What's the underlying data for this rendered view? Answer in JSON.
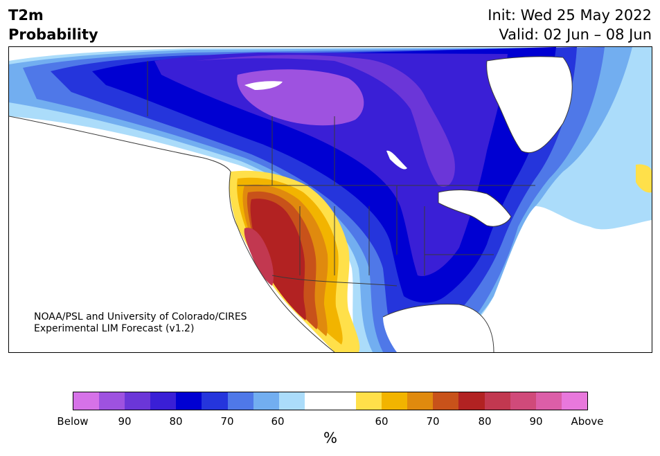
{
  "title": {
    "line1": "T2m",
    "line2": "Probability"
  },
  "dates": {
    "init": "Init: Wed 25 May 2022",
    "valid": "Valid: 02 Jun – 08 Jun"
  },
  "credit": {
    "line1": "NOAA/PSL and University of Colorado/CIRES",
    "line2": "Experimental LIM Forecast (v1.2)"
  },
  "colorbar": {
    "colors": [
      "#d672e8",
      "#9e52e0",
      "#6b36d8",
      "#3a1fd6",
      "#0000d2",
      "#2535dc",
      "#4f78e8",
      "#72aef0",
      "#abdcfa",
      "#ffffff",
      "#ffffff",
      "#ffe04a",
      "#f2b400",
      "#e08a0e",
      "#c8521a",
      "#b22222",
      "#c23850",
      "#d04a7a",
      "#dc5ea8",
      "#e878dc"
    ],
    "ticks": [
      "Below",
      "90",
      "80",
      "70",
      "60",
      "60",
      "70",
      "80",
      "90",
      "Above"
    ],
    "unit": "%"
  },
  "map_regions": {
    "cold_core_color": "#9e52e0",
    "warm_core_color": "#b22222"
  }
}
